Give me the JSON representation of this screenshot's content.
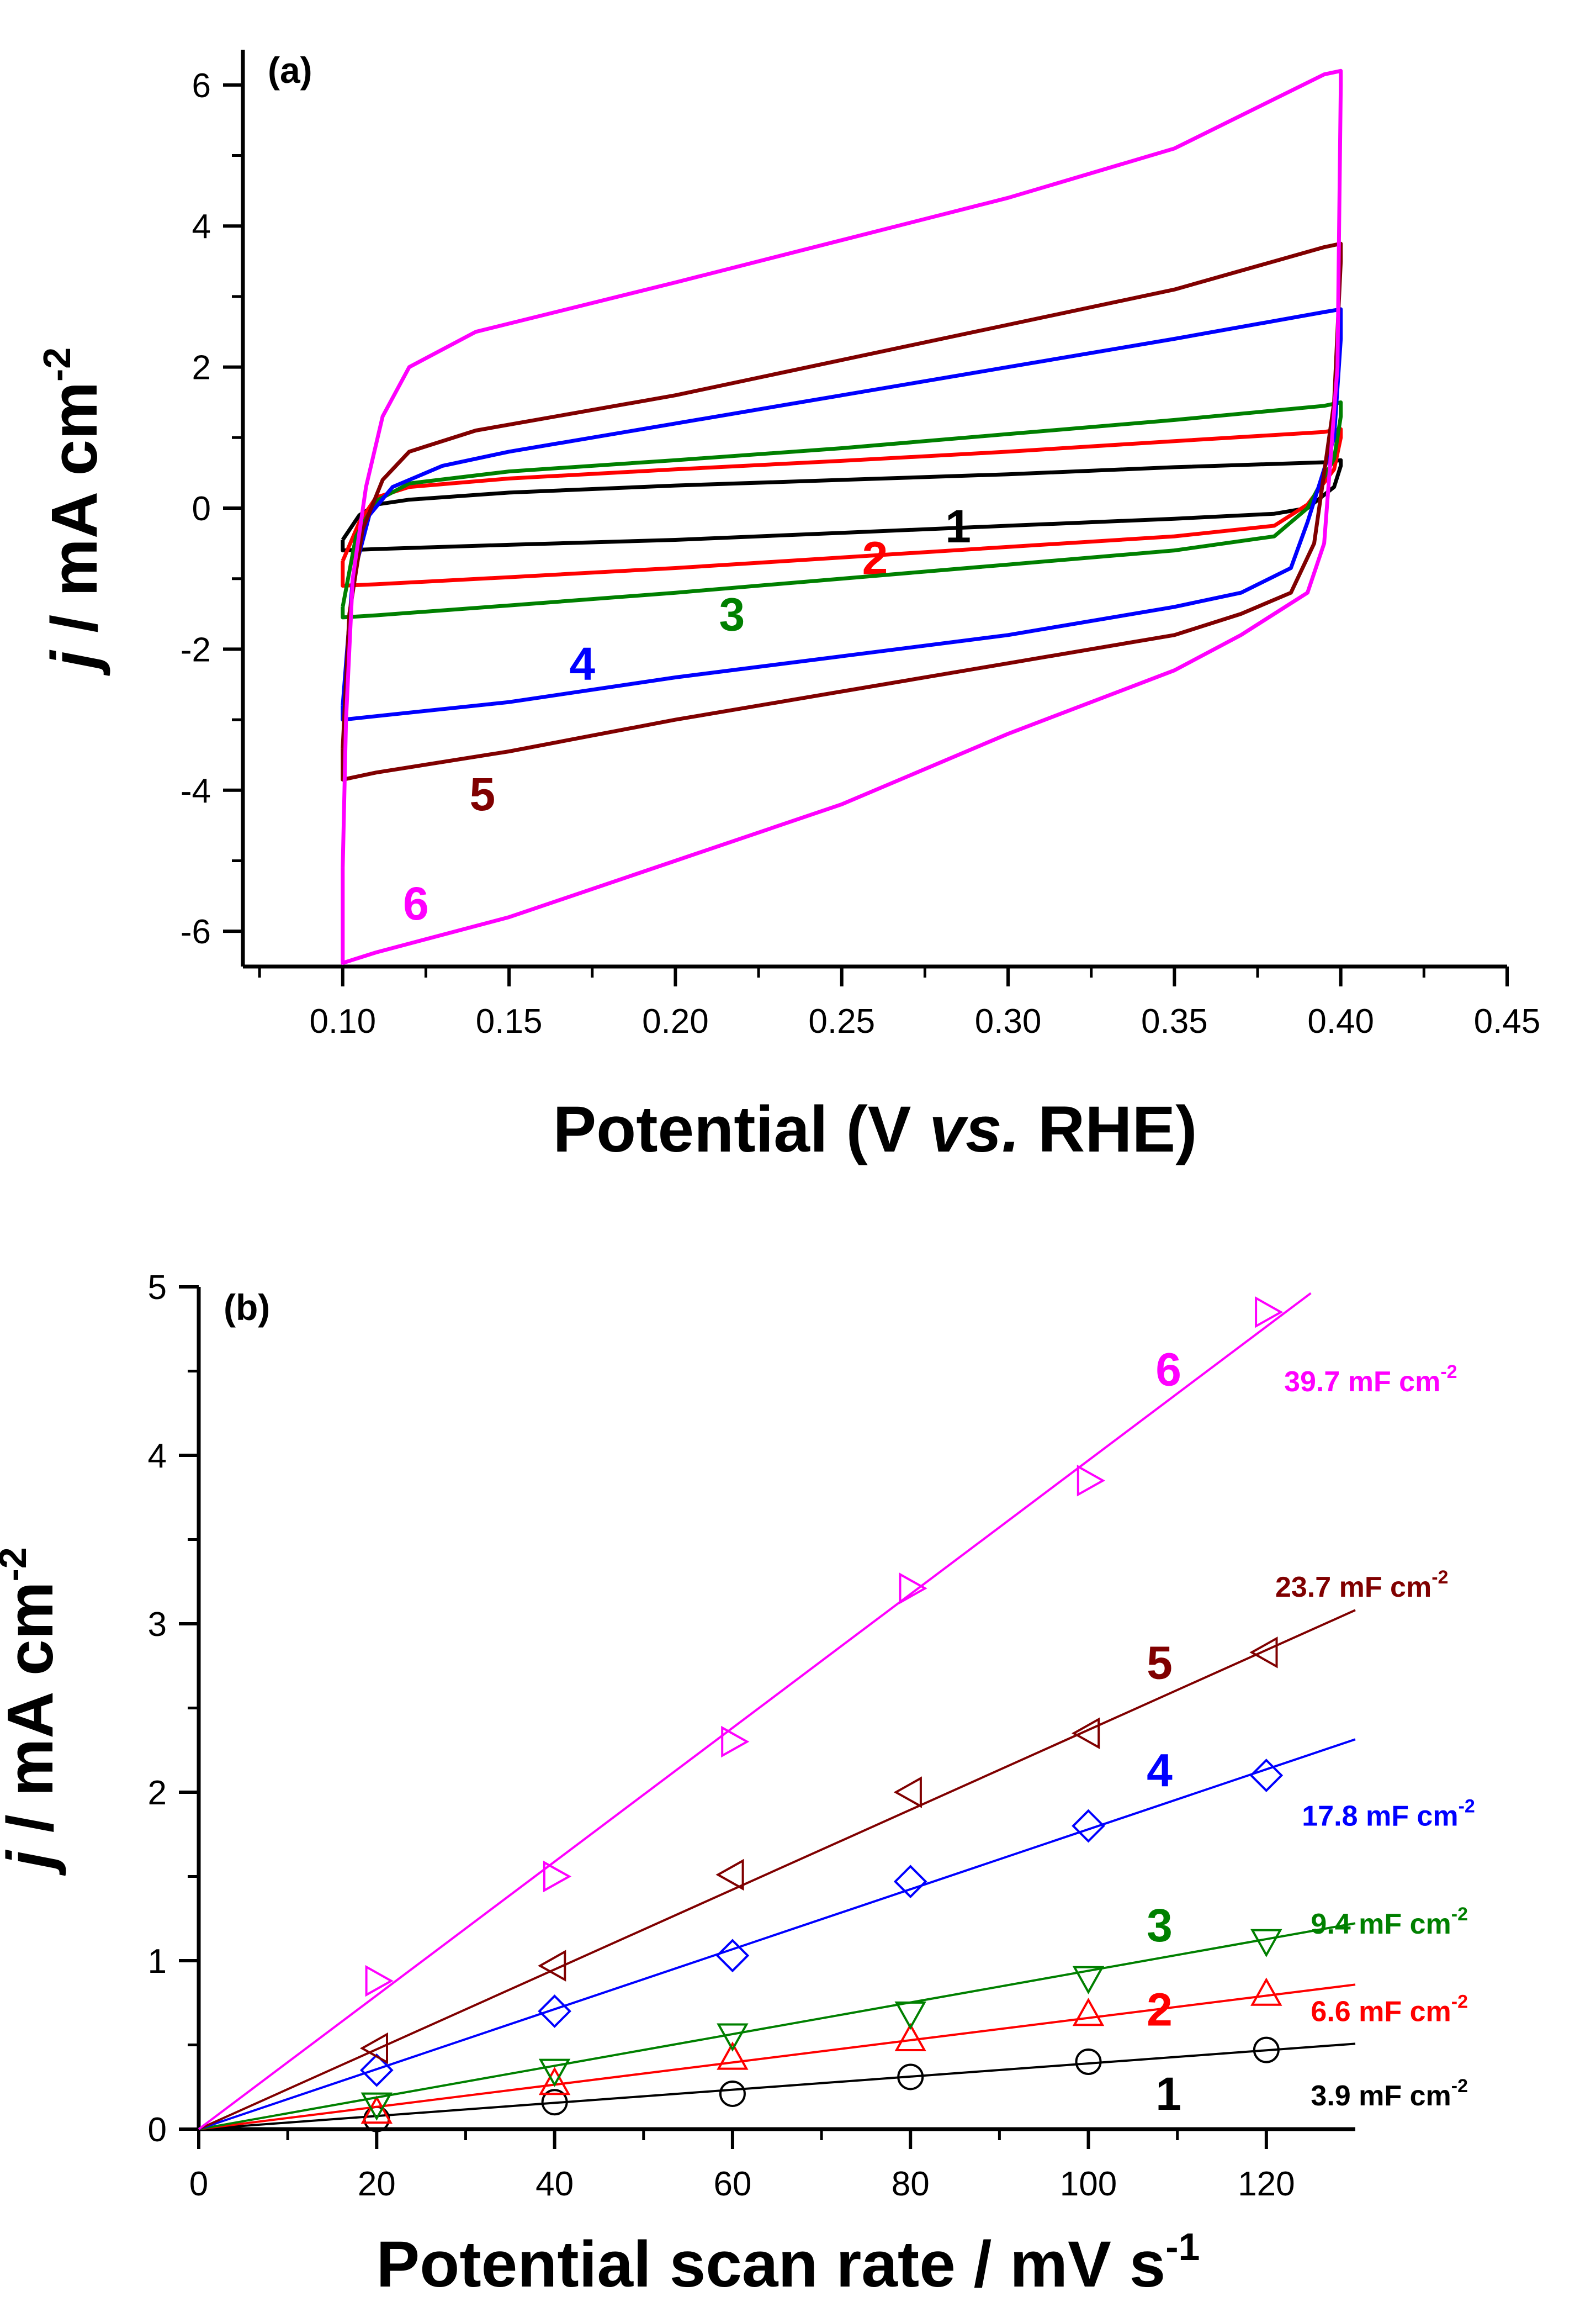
{
  "chart_data": [
    {
      "type": "line",
      "panel_label": "(a)",
      "xlabel_main": "Potential (V ",
      "xlabel_italic": "vs.",
      "xlabel_end": " RHE)",
      "ylabel_italic": "j",
      "ylabel_main": " / mA cm",
      "ylabel_sup": "-2",
      "xlim": [
        0.07,
        0.45
      ],
      "ylim": [
        -6.5,
        6.5
      ],
      "xticks": [
        0.1,
        0.15,
        0.2,
        0.25,
        0.3,
        0.35,
        0.4,
        0.45
      ],
      "xtick_labels": [
        "0.10",
        "0.15",
        "0.20",
        "0.25",
        "0.30",
        "0.35",
        "0.40",
        "0.45"
      ],
      "yticks": [
        -6,
        -4,
        -2,
        0,
        2,
        4,
        6
      ],
      "ytick_labels": [
        "-6",
        "-4",
        "-2",
        "0",
        "2",
        "4",
        "6"
      ],
      "grid": false,
      "series": [
        {
          "name": "1",
          "color": "#000000",
          "anodic": [
            [
              0.1,
              -0.45
            ],
            [
              0.105,
              -0.1
            ],
            [
              0.11,
              0.05
            ],
            [
              0.12,
              0.12
            ],
            [
              0.15,
              0.22
            ],
            [
              0.2,
              0.32
            ],
            [
              0.25,
              0.4
            ],
            [
              0.3,
              0.48
            ],
            [
              0.35,
              0.58
            ],
            [
              0.395,
              0.65
            ],
            [
              0.4,
              0.68
            ]
          ],
          "cathodic": [
            [
              0.4,
              0.6
            ],
            [
              0.398,
              0.3
            ],
            [
              0.39,
              0.0
            ],
            [
              0.38,
              -0.08
            ],
            [
              0.35,
              -0.15
            ],
            [
              0.3,
              -0.25
            ],
            [
              0.25,
              -0.35
            ],
            [
              0.2,
              -0.45
            ],
            [
              0.15,
              -0.52
            ],
            [
              0.11,
              -0.58
            ],
            [
              0.1,
              -0.6
            ]
          ],
          "label_at": [
            0.285,
            -0.25
          ]
        },
        {
          "name": "2",
          "color": "#ff0000",
          "anodic": [
            [
              0.1,
              -0.75
            ],
            [
              0.105,
              -0.2
            ],
            [
              0.11,
              0.15
            ],
            [
              0.12,
              0.3
            ],
            [
              0.15,
              0.42
            ],
            [
              0.2,
              0.55
            ],
            [
              0.25,
              0.67
            ],
            [
              0.3,
              0.8
            ],
            [
              0.35,
              0.95
            ],
            [
              0.395,
              1.08
            ],
            [
              0.4,
              1.12
            ]
          ],
          "cathodic": [
            [
              0.4,
              1.0
            ],
            [
              0.398,
              0.55
            ],
            [
              0.39,
              0.05
            ],
            [
              0.38,
              -0.25
            ],
            [
              0.35,
              -0.4
            ],
            [
              0.3,
              -0.55
            ],
            [
              0.25,
              -0.7
            ],
            [
              0.2,
              -0.85
            ],
            [
              0.15,
              -0.98
            ],
            [
              0.11,
              -1.08
            ],
            [
              0.1,
              -1.1
            ]
          ],
          "label_at": [
            0.26,
            -0.7
          ]
        },
        {
          "name": "3",
          "color": "#008000",
          "anodic": [
            [
              0.1,
              -1.4
            ],
            [
              0.104,
              -0.4
            ],
            [
              0.11,
              0.1
            ],
            [
              0.12,
              0.35
            ],
            [
              0.15,
              0.52
            ],
            [
              0.2,
              0.68
            ],
            [
              0.25,
              0.85
            ],
            [
              0.3,
              1.05
            ],
            [
              0.35,
              1.25
            ],
            [
              0.395,
              1.45
            ],
            [
              0.4,
              1.5
            ]
          ],
          "cathodic": [
            [
              0.4,
              1.3
            ],
            [
              0.398,
              0.7
            ],
            [
              0.39,
              0.0
            ],
            [
              0.38,
              -0.4
            ],
            [
              0.35,
              -0.6
            ],
            [
              0.3,
              -0.8
            ],
            [
              0.25,
              -1.0
            ],
            [
              0.2,
              -1.2
            ],
            [
              0.15,
              -1.38
            ],
            [
              0.11,
              -1.52
            ],
            [
              0.1,
              -1.55
            ]
          ],
          "label_at": [
            0.217,
            -1.5
          ]
        },
        {
          "name": "4",
          "color": "#0000ff",
          "anodic": [
            [
              0.1,
              -2.8
            ],
            [
              0.103,
              -1.0
            ],
            [
              0.108,
              -0.1
            ],
            [
              0.115,
              0.3
            ],
            [
              0.13,
              0.6
            ],
            [
              0.15,
              0.8
            ],
            [
              0.2,
              1.2
            ],
            [
              0.25,
              1.6
            ],
            [
              0.3,
              2.0
            ],
            [
              0.35,
              2.4
            ],
            [
              0.395,
              2.78
            ],
            [
              0.4,
              2.82
            ]
          ],
          "cathodic": [
            [
              0.4,
              2.4
            ],
            [
              0.398,
              1.0
            ],
            [
              0.39,
              -0.2
            ],
            [
              0.385,
              -0.85
            ],
            [
              0.37,
              -1.2
            ],
            [
              0.35,
              -1.4
            ],
            [
              0.3,
              -1.8
            ],
            [
              0.25,
              -2.1
            ],
            [
              0.2,
              -2.4
            ],
            [
              0.15,
              -2.75
            ],
            [
              0.11,
              -2.95
            ],
            [
              0.1,
              -3.0
            ]
          ],
          "label_at": [
            0.172,
            -2.2
          ]
        },
        {
          "name": "5",
          "color": "#800000",
          "anodic": [
            [
              0.1,
              -3.4
            ],
            [
              0.102,
              -1.5
            ],
            [
              0.106,
              -0.3
            ],
            [
              0.112,
              0.4
            ],
            [
              0.12,
              0.8
            ],
            [
              0.14,
              1.1
            ],
            [
              0.2,
              1.6
            ],
            [
              0.25,
              2.1
            ],
            [
              0.3,
              2.6
            ],
            [
              0.35,
              3.1
            ],
            [
              0.395,
              3.7
            ],
            [
              0.4,
              3.75
            ]
          ],
          "cathodic": [
            [
              0.4,
              3.5
            ],
            [
              0.398,
              1.5
            ],
            [
              0.392,
              -0.5
            ],
            [
              0.385,
              -1.2
            ],
            [
              0.37,
              -1.5
            ],
            [
              0.35,
              -1.8
            ],
            [
              0.3,
              -2.2
            ],
            [
              0.25,
              -2.6
            ],
            [
              0.2,
              -3.0
            ],
            [
              0.15,
              -3.45
            ],
            [
              0.11,
              -3.75
            ],
            [
              0.1,
              -3.85
            ]
          ],
          "label_at": [
            0.142,
            -4.05
          ]
        },
        {
          "name": "6",
          "color": "#ff00ff",
          "anodic": [
            [
              0.1,
              -5.1
            ],
            [
              0.101,
              -3.0
            ],
            [
              0.103,
              -1.0
            ],
            [
              0.107,
              0.3
            ],
            [
              0.112,
              1.3
            ],
            [
              0.12,
              2.0
            ],
            [
              0.14,
              2.5
            ],
            [
              0.2,
              3.2
            ],
            [
              0.25,
              3.8
            ],
            [
              0.3,
              4.4
            ],
            [
              0.35,
              5.1
            ],
            [
              0.395,
              6.15
            ],
            [
              0.4,
              6.2
            ]
          ],
          "cathodic": [
            [
              0.4,
              6.0
            ],
            [
              0.399,
              2.0
            ],
            [
              0.395,
              -0.5
            ],
            [
              0.39,
              -1.2
            ],
            [
              0.37,
              -1.8
            ],
            [
              0.35,
              -2.3
            ],
            [
              0.3,
              -3.2
            ],
            [
              0.25,
              -4.2
            ],
            [
              0.2,
              -5.0
            ],
            [
              0.15,
              -5.8
            ],
            [
              0.11,
              -6.3
            ],
            [
              0.1,
              -6.45
            ]
          ],
          "label_at": [
            0.122,
            -5.6
          ]
        }
      ]
    },
    {
      "type": "scatter",
      "panel_label": "(b)",
      "xlabel_main": "Potential scan rate / mV s",
      "xlabel_sup": "-1",
      "ylabel_italic": "j",
      "ylabel_main": " / mA cm",
      "ylabel_sup": "-2",
      "xlim": [
        0,
        130
      ],
      "ylim": [
        0,
        5
      ],
      "xticks": [
        0,
        20,
        40,
        60,
        80,
        100,
        120
      ],
      "xtick_labels": [
        "0",
        "20",
        "40",
        "60",
        "80",
        "100",
        "120"
      ],
      "yticks": [
        0,
        1,
        2,
        3,
        4,
        5
      ],
      "ytick_labels": [
        "0",
        "1",
        "2",
        "3",
        "4",
        "5"
      ],
      "grid": false,
      "series": [
        {
          "name": "1",
          "color": "#000000",
          "marker": "circle",
          "x": [
            20,
            40,
            60,
            80,
            100,
            120
          ],
          "y": [
            0.06,
            0.16,
            0.21,
            0.31,
            0.4,
            0.47
          ],
          "fit": {
            "slope": 0.0039,
            "x_end": 130
          },
          "capacitance": "3.9 mF cm",
          "cap_sup": "-2",
          "label_at": [
            109,
            0.18
          ],
          "cap_at": [
            125,
            0.2
          ]
        },
        {
          "name": "2",
          "color": "#ff0000",
          "marker": "triangle-up",
          "x": [
            20,
            40,
            60,
            80,
            100,
            120
          ],
          "y": [
            0.1,
            0.27,
            0.42,
            0.53,
            0.68,
            0.8
          ],
          "fit": {
            "slope": 0.0066,
            "x_end": 130
          },
          "capacitance": "6.6 mF cm",
          "cap_sup": "-2",
          "label_at": [
            108,
            0.68
          ],
          "cap_at": [
            125,
            0.7
          ]
        },
        {
          "name": "3",
          "color": "#008000",
          "marker": "triangle-down",
          "x": [
            20,
            40,
            60,
            80,
            100,
            120
          ],
          "y": [
            0.15,
            0.35,
            0.56,
            0.69,
            0.9,
            1.12
          ],
          "fit": {
            "slope": 0.0094,
            "x_end": 130
          },
          "capacitance": "9.4 mF cm",
          "cap_sup": "-2",
          "label_at": [
            108,
            1.18
          ],
          "cap_at": [
            125,
            1.22
          ]
        },
        {
          "name": "4",
          "color": "#0000ff",
          "marker": "diamond",
          "x": [
            20,
            40,
            60,
            80,
            100,
            120
          ],
          "y": [
            0.35,
            0.7,
            1.03,
            1.47,
            1.8,
            2.1
          ],
          "fit": {
            "slope": 0.0178,
            "x_end": 130
          },
          "capacitance": "17.8 mF cm",
          "cap_sup": "-2",
          "label_at": [
            108,
            2.1
          ],
          "cap_at": [
            124,
            1.86
          ]
        },
        {
          "name": "5",
          "color": "#800000",
          "marker": "triangle-left",
          "x": [
            20,
            40,
            60,
            80,
            100,
            120
          ],
          "y": [
            0.48,
            0.97,
            1.51,
            2.0,
            2.35,
            2.83
          ],
          "fit": {
            "slope": 0.0237,
            "x_end": 130
          },
          "capacitance": "23.7 mF cm",
          "cap_sup": "-2",
          "label_at": [
            108,
            2.74
          ],
          "cap_at": [
            121,
            3.22
          ]
        },
        {
          "name": "6",
          "color": "#ff00ff",
          "marker": "triangle-right",
          "x": [
            20,
            40,
            60,
            80,
            100,
            120
          ],
          "y": [
            0.88,
            1.5,
            2.3,
            3.21,
            3.85,
            4.85
          ],
          "fit": {
            "slope": 0.0397,
            "x_end": 125
          },
          "capacitance": "39.7 mF cm",
          "cap_sup": "-2",
          "label_at": [
            109,
            4.48
          ],
          "cap_at": [
            122,
            4.44
          ]
        }
      ]
    }
  ]
}
